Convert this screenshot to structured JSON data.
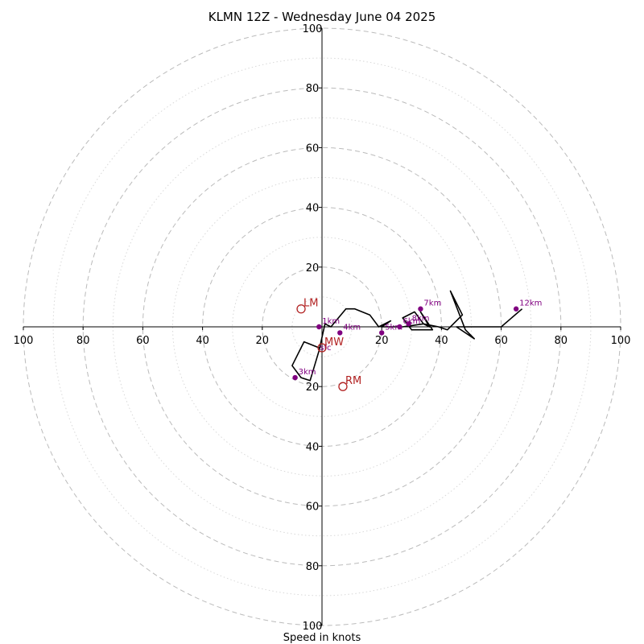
{
  "chart_data": {
    "type": "hodograph",
    "title": "KLMN 12Z - Wednesday June 04 2025",
    "xlabel": "Speed in knots",
    "axis_range": [
      -100,
      100
    ],
    "ring_step": 10,
    "tick_labels": [
      "100",
      "80",
      "60",
      "40",
      "20",
      "20",
      "40",
      "60",
      "80",
      "100"
    ],
    "tick_values": [
      -100,
      -80,
      -60,
      -40,
      -20,
      20,
      40,
      60,
      80,
      100
    ],
    "v_tick_labels": [
      "100",
      "80",
      "60",
      "40",
      "20",
      "20",
      "40",
      "60",
      "80",
      "100"
    ],
    "colors": {
      "trace": "#000000",
      "height_marker": "#800080",
      "storm_motion": "#b22222",
      "grid": "#bbbbbb"
    },
    "trace": [
      [
        -1,
        -7
      ],
      [
        -6,
        -5
      ],
      [
        -10,
        -13
      ],
      [
        -7,
        -17
      ],
      [
        -4,
        -18
      ],
      [
        -1,
        -8
      ],
      [
        1,
        1
      ],
      [
        3,
        0
      ],
      [
        8,
        6
      ],
      [
        11,
        6
      ],
      [
        16,
        4
      ],
      [
        19,
        0
      ],
      [
        23,
        2
      ],
      [
        20,
        0
      ],
      [
        26,
        0
      ],
      [
        27,
        0
      ],
      [
        34,
        1
      ],
      [
        36,
        0
      ],
      [
        33,
        5
      ],
      [
        37,
        -1
      ],
      [
        30,
        -1
      ],
      [
        27,
        3
      ],
      [
        31,
        5
      ],
      [
        34,
        1
      ],
      [
        39,
        0
      ],
      [
        42,
        -1
      ],
      [
        47,
        4
      ],
      [
        43,
        12
      ],
      [
        48,
        -1
      ],
      [
        51,
        -4
      ],
      [
        45,
        0
      ],
      [
        59,
        0
      ],
      [
        60,
        0
      ],
      [
        67,
        6
      ]
    ],
    "height_markers": [
      {
        "label": "3km",
        "u": -9,
        "v": -17
      },
      {
        "label": "1km",
        "u": -1,
        "v": 0
      },
      {
        "label": "4km",
        "u": 6,
        "v": -2
      },
      {
        "label": "5km",
        "u": 20,
        "v": -2
      },
      {
        "label": "6km",
        "u": 26,
        "v": 0
      },
      {
        "label": "7km",
        "u": 33,
        "v": 6
      },
      {
        "label": "8km",
        "u": 29,
        "v": 1
      },
      {
        "label": "12km",
        "u": 65,
        "v": 6
      }
    ],
    "storm_motion": [
      {
        "label": "LM",
        "u": -7,
        "v": 6
      },
      {
        "label": "RM",
        "u": 7,
        "v": -20
      },
      {
        "label": "MW",
        "u": 0,
        "v": -7
      }
    ],
    "sfc_label": "sfc",
    "grid": true
  }
}
